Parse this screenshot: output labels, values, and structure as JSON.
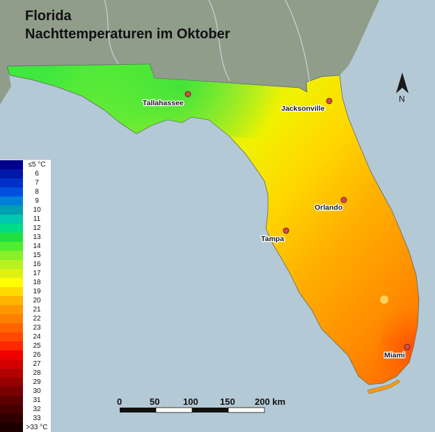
{
  "title": {
    "line1": "Florida",
    "line2": "Nachttemperaturen im Oktober"
  },
  "north": {
    "label": "N"
  },
  "cities": [
    {
      "name": "Tallahassee"
    },
    {
      "name": "Jacksonville"
    },
    {
      "name": "Orlando"
    },
    {
      "name": "Tampa"
    },
    {
      "name": "Miami"
    }
  ],
  "legend": [
    {
      "label": "≤5 °C",
      "color": "#00008c"
    },
    {
      "label": "6",
      "color": "#0018a8"
    },
    {
      "label": "7",
      "color": "#0030c8"
    },
    {
      "label": "8",
      "color": "#0050e0"
    },
    {
      "label": "9",
      "color": "#0080d8"
    },
    {
      "label": "10",
      "color": "#00a0b0"
    },
    {
      "label": "11",
      "color": "#00c8b0"
    },
    {
      "label": "12",
      "color": "#00dc88"
    },
    {
      "label": "13",
      "color": "#20e040"
    },
    {
      "label": "14",
      "color": "#50ec30"
    },
    {
      "label": "15",
      "color": "#88f028"
    },
    {
      "label": "16",
      "color": "#b8f020"
    },
    {
      "label": "17",
      "color": "#e0f010"
    },
    {
      "label": "18",
      "color": "#ffff00"
    },
    {
      "label": "19",
      "color": "#ffdc00"
    },
    {
      "label": "20",
      "color": "#ffb400"
    },
    {
      "label": "21",
      "color": "#ff9800"
    },
    {
      "label": "22",
      "color": "#ff8000"
    },
    {
      "label": "23",
      "color": "#ff6400"
    },
    {
      "label": "24",
      "color": "#ff4800"
    },
    {
      "label": "25",
      "color": "#ff2800"
    },
    {
      "label": "26",
      "color": "#f00000"
    },
    {
      "label": "27",
      "color": "#d40000"
    },
    {
      "label": "28",
      "color": "#b40000"
    },
    {
      "label": "29",
      "color": "#960000"
    },
    {
      "label": "30",
      "color": "#780000"
    },
    {
      "label": "31",
      "color": "#5c0000"
    },
    {
      "label": "32",
      "color": "#440000"
    },
    {
      "label": "33",
      "color": "#300000"
    },
    {
      "label": ">33 °C",
      "color": "#1c0000"
    }
  ],
  "scale_bar": {
    "ticks": [
      "0",
      "50",
      "100",
      "150",
      "200 km"
    ]
  },
  "colors": {
    "sea": "#b4c9d6",
    "land_outside": "#8f9d8a",
    "city_marker": "#d44a4a"
  }
}
